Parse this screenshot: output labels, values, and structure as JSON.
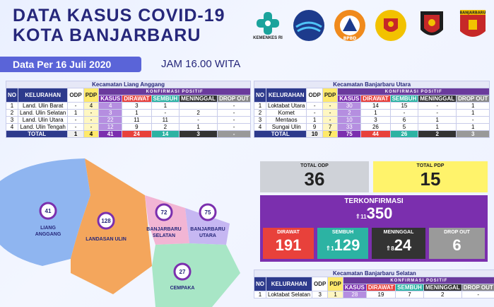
{
  "header": {
    "title_line1": "DATA KASUS COVID-19",
    "title_line2": "KOTA BANJARBARU",
    "date": "Data Per 16 Juli 2020",
    "time": "JAM 16.00 WITA"
  },
  "logos": {
    "kemenkes": "KEMENKES RI",
    "bpbd": "BPBD",
    "kab_label": "BANJARBARU"
  },
  "table_headers": {
    "no": "NO",
    "kelurahan": "KELURAHAN",
    "odp": "ODP",
    "pdp": "PDP",
    "konfirmasi": "KONFIRMASI POSITIF",
    "kasus": "KASUS",
    "dirawat": "DIRAWAT",
    "sembuh": "SEMBUH",
    "meninggal": "MENINGGAL",
    "dropout": "DROP OUT",
    "total": "TOTAL"
  },
  "liang_anggang": {
    "caption": "Kecamatan Liang Anggang",
    "rows": [
      {
        "no": "1",
        "kel": "Land. Ulin Barat",
        "odp": "-",
        "pdp": "4",
        "kasus": "4",
        "dirawat": "3",
        "sembuh": "1",
        "meninggal": "",
        "drop": "-"
      },
      {
        "no": "2",
        "kel": "Land. Ulin Selatan",
        "odp": "1",
        "pdp": "-",
        "kasus": "3",
        "dirawat": "1",
        "sembuh": "-",
        "meninggal": "2",
        "drop": "-"
      },
      {
        "no": "3",
        "kel": "Land. Ulin Utara",
        "odp": "-",
        "pdp": "-",
        "kasus": "22",
        "dirawat": "11",
        "sembuh": "11",
        "meninggal": "-",
        "drop": "-"
      },
      {
        "no": "4",
        "kel": "Land. Ulin Tengah",
        "odp": "-",
        "pdp": "-",
        "kasus": "12",
        "dirawat": "9",
        "sembuh": "2",
        "meninggal": "1",
        "drop": "-"
      }
    ],
    "total": {
      "odp": "1",
      "pdp": "4",
      "kasus": "41",
      "dirawat": "24",
      "sembuh": "14",
      "meninggal": "3",
      "drop": "-"
    }
  },
  "banjarbaru_utara": {
    "caption": "Kecamatan Banjarbaru Utara",
    "rows": [
      {
        "no": "1",
        "kel": "Loktabat Utara",
        "odp": "-",
        "pdp": "-",
        "kasus": "30",
        "dirawat": "14",
        "sembuh": "15",
        "meninggal": "-",
        "drop": "1"
      },
      {
        "no": "2",
        "kel": "Komet",
        "odp": "-",
        "pdp": "-",
        "kasus": "2",
        "dirawat": "1",
        "sembuh": "-",
        "meninggal": "-",
        "drop": "1"
      },
      {
        "no": "3",
        "kel": "Mentaos",
        "odp": "1",
        "pdp": "-",
        "kasus": "10",
        "dirawat": "3",
        "sembuh": "6",
        "meninggal": "1",
        "drop": "-"
      },
      {
        "no": "4",
        "kel": "Sungai Ulin",
        "odp": "9",
        "pdp": "7",
        "kasus": "33",
        "dirawat": "26",
        "sembuh": "5",
        "meninggal": "1",
        "drop": "1"
      }
    ],
    "total": {
      "odp": "10",
      "pdp": "7",
      "kasus": "75",
      "dirawat": "44",
      "sembuh": "26",
      "meninggal": "2",
      "drop": "3"
    }
  },
  "banjarbaru_selatan": {
    "caption": "Kecamatan Banjarbaru Selatan",
    "rows": [
      {
        "no": "1",
        "kel": "Loktabat Selatan",
        "odp": "3",
        "pdp": "1",
        "kasus": "28",
        "dirawat": "19",
        "sembuh": "7",
        "meninggal": "2",
        "drop": "-"
      }
    ]
  },
  "summary": {
    "total_odp_label": "TOTAL ODP",
    "total_odp": "36",
    "total_pdp_label": "TOTAL PDP",
    "total_pdp": "15",
    "terkonfirmasi_label": "TERKONFIRMASI",
    "terkonfirmasi": "350",
    "terkonfirmasi_delta": "11",
    "dirawat_label": "DIRAWAT",
    "dirawat": "191",
    "sembuh_label": "SEMBUH",
    "sembuh": "129",
    "sembuh_delta": "1",
    "meninggal_label": "MENINGGAL",
    "meninggal": "24",
    "meninggal_delta": "8",
    "dropout_label": "DROP OUT",
    "dropout": "6"
  },
  "map": {
    "liang_anggang": {
      "count": "41",
      "name1": "LIANG",
      "name2": "ANGGANG"
    },
    "landasan_ulin": {
      "count": "128",
      "name1": "LANDASAN ULIN"
    },
    "banjarbaru_selatan": {
      "count": "72",
      "name1": "BANJARBARU",
      "name2": "SELATAN"
    },
    "banjarbaru_utara": {
      "count": "75",
      "name1": "BANJARBARU",
      "name2": "UTARA"
    },
    "cempaka": {
      "count": "27",
      "name1": "CEMPAKA"
    }
  },
  "colors": {
    "navy": "#26277a",
    "banner": "#5a64d8",
    "kasus": "#7b2fae",
    "dirawat": "#e8413b",
    "sembuh": "#2cb3a3",
    "meninggal": "#333333",
    "dropout": "#888888",
    "pdp": "#ffe96b"
  }
}
